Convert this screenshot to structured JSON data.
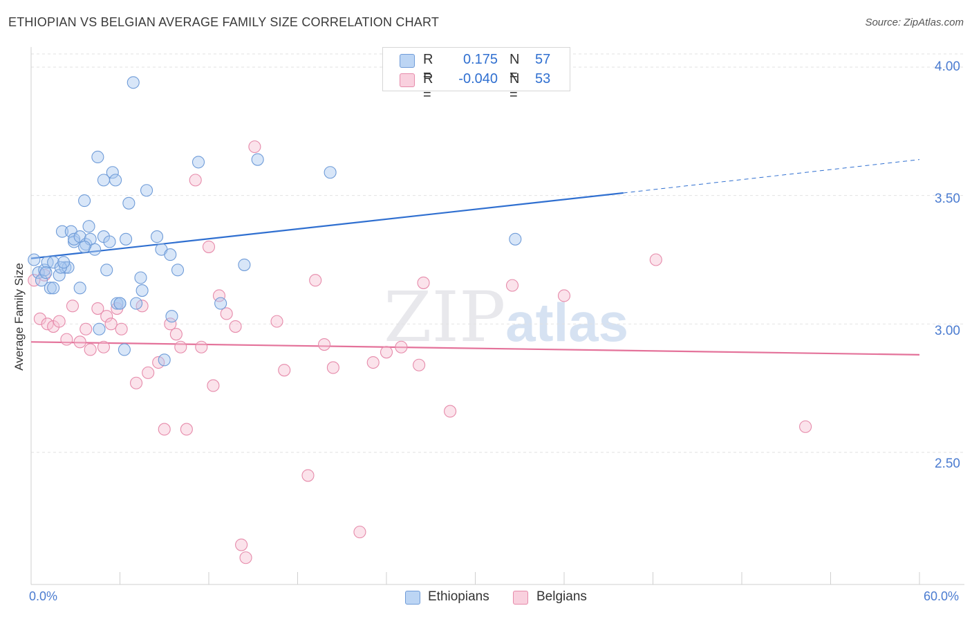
{
  "title": "ETHIOPIAN VS BELGIAN AVERAGE FAMILY SIZE CORRELATION CHART",
  "source": "Source: ZipAtlas.com",
  "watermark": {
    "zip": "ZIP",
    "atlas": "atlas"
  },
  "legend": {
    "rows": [
      {
        "r_label": "R =",
        "r_value": "0.175",
        "n_label": "N =",
        "n_value": "57"
      },
      {
        "r_label": "R =",
        "r_value": "-0.040",
        "n_label": "N =",
        "n_value": "53"
      }
    ]
  },
  "bottom_legend": [
    "Ethiopians",
    "Belgians"
  ],
  "colors": {
    "ethiopian_fill": "#a9c8ef",
    "ethiopian_stroke": "#6e9bd8",
    "ethiopian_line": "#2f6fd0",
    "belgian_fill": "#f6c1d2",
    "belgian_stroke": "#e68aaa",
    "belgian_line": "#e4729a",
    "accent_text": "#4a7bd0"
  },
  "chart_data": {
    "type": "scatter",
    "title": "ETHIOPIAN VS BELGIAN AVERAGE FAMILY SIZE CORRELATION CHART",
    "xlabel": "",
    "ylabel": "Average Family Size",
    "x_tick_labels": [
      "0.0%",
      "60.0%"
    ],
    "y_tick_labels": [
      "4.00",
      "3.50",
      "3.00",
      "2.50"
    ],
    "xlim": [
      0,
      60
    ],
    "ylim": [
      2.05,
      4.08
    ],
    "y_ticks": [
      4.0,
      3.5,
      3.0,
      2.5
    ],
    "grid": true,
    "legend_position": "top-center",
    "series": [
      {
        "name": "Ethiopians",
        "r": 0.175,
        "n": 57,
        "trend": {
          "x0": 0,
          "y0": 3.255,
          "x1": 40,
          "y1": 3.51,
          "dashed_to_x": 60,
          "dashed_to_y": 3.64
        },
        "points": [
          [
            0.2,
            3.25
          ],
          [
            0.5,
            3.2
          ],
          [
            0.7,
            3.17
          ],
          [
            0.9,
            3.21
          ],
          [
            1.1,
            3.24
          ],
          [
            1.3,
            3.14
          ],
          [
            1.5,
            3.24
          ],
          [
            1.5,
            3.14
          ],
          [
            1.9,
            3.19
          ],
          [
            2.1,
            3.36
          ],
          [
            2.3,
            3.22
          ],
          [
            2.5,
            3.22
          ],
          [
            2.7,
            3.36
          ],
          [
            2.9,
            3.32
          ],
          [
            2.9,
            3.33
          ],
          [
            3.3,
            3.34
          ],
          [
            3.3,
            3.14
          ],
          [
            3.6,
            3.48
          ],
          [
            3.7,
            3.31
          ],
          [
            3.9,
            3.38
          ],
          [
            4.0,
            3.33
          ],
          [
            4.3,
            3.29
          ],
          [
            4.5,
            3.65
          ],
          [
            4.6,
            2.98
          ],
          [
            4.9,
            3.34
          ],
          [
            4.9,
            3.56
          ],
          [
            5.1,
            3.21
          ],
          [
            5.3,
            3.32
          ],
          [
            5.5,
            3.59
          ],
          [
            5.7,
            3.56
          ],
          [
            5.8,
            3.08
          ],
          [
            6.0,
            3.08
          ],
          [
            6.3,
            2.9
          ],
          [
            6.4,
            3.33
          ],
          [
            6.6,
            3.47
          ],
          [
            6.9,
            3.94
          ],
          [
            7.1,
            3.08
          ],
          [
            7.4,
            3.18
          ],
          [
            7.5,
            3.13
          ],
          [
            7.8,
            3.52
          ],
          [
            8.5,
            3.34
          ],
          [
            8.8,
            3.29
          ],
          [
            9.0,
            2.86
          ],
          [
            9.4,
            3.27
          ],
          [
            9.5,
            3.03
          ],
          [
            9.9,
            3.21
          ],
          [
            11.3,
            3.63
          ],
          [
            12.8,
            3.08
          ],
          [
            14.4,
            3.23
          ],
          [
            15.3,
            3.64
          ],
          [
            20.2,
            3.59
          ],
          [
            32.7,
            3.33
          ],
          [
            2.0,
            3.22
          ],
          [
            2.2,
            3.24
          ],
          [
            1.0,
            3.2
          ],
          [
            3.6,
            3.3
          ],
          [
            6.0,
            3.08
          ]
        ]
      },
      {
        "name": "Belgians",
        "r": -0.04,
        "n": 53,
        "trend": {
          "x0": 0,
          "y0": 2.93,
          "x1": 60,
          "y1": 2.88
        },
        "points": [
          [
            0.2,
            3.17
          ],
          [
            0.6,
            3.02
          ],
          [
            0.9,
            3.19
          ],
          [
            1.1,
            3.0
          ],
          [
            1.5,
            2.99
          ],
          [
            1.9,
            3.01
          ],
          [
            2.4,
            2.94
          ],
          [
            2.8,
            3.07
          ],
          [
            3.3,
            2.93
          ],
          [
            3.7,
            2.98
          ],
          [
            4.0,
            2.9
          ],
          [
            4.5,
            3.06
          ],
          [
            4.9,
            2.91
          ],
          [
            5.1,
            3.03
          ],
          [
            5.4,
            3.0
          ],
          [
            5.8,
            3.06
          ],
          [
            6.1,
            2.98
          ],
          [
            7.1,
            2.77
          ],
          [
            7.5,
            3.07
          ],
          [
            7.9,
            2.81
          ],
          [
            8.6,
            2.85
          ],
          [
            9.0,
            2.59
          ],
          [
            9.4,
            3.0
          ],
          [
            9.8,
            2.96
          ],
          [
            10.1,
            2.91
          ],
          [
            10.5,
            2.59
          ],
          [
            11.1,
            3.56
          ],
          [
            11.5,
            2.91
          ],
          [
            12.0,
            3.3
          ],
          [
            12.3,
            2.76
          ],
          [
            12.7,
            3.11
          ],
          [
            13.2,
            3.04
          ],
          [
            13.8,
            2.99
          ],
          [
            14.2,
            2.14
          ],
          [
            14.5,
            2.09
          ],
          [
            15.1,
            3.69
          ],
          [
            16.6,
            3.01
          ],
          [
            17.1,
            2.82
          ],
          [
            18.7,
            2.41
          ],
          [
            19.2,
            3.17
          ],
          [
            19.8,
            2.92
          ],
          [
            20.4,
            2.83
          ],
          [
            22.2,
            2.19
          ],
          [
            23.1,
            2.85
          ],
          [
            24.0,
            2.89
          ],
          [
            25.0,
            2.91
          ],
          [
            26.2,
            2.84
          ],
          [
            26.5,
            3.16
          ],
          [
            28.3,
            2.66
          ],
          [
            32.5,
            3.15
          ],
          [
            36.0,
            3.11
          ],
          [
            42.2,
            3.25
          ],
          [
            52.3,
            2.6
          ]
        ]
      }
    ]
  }
}
